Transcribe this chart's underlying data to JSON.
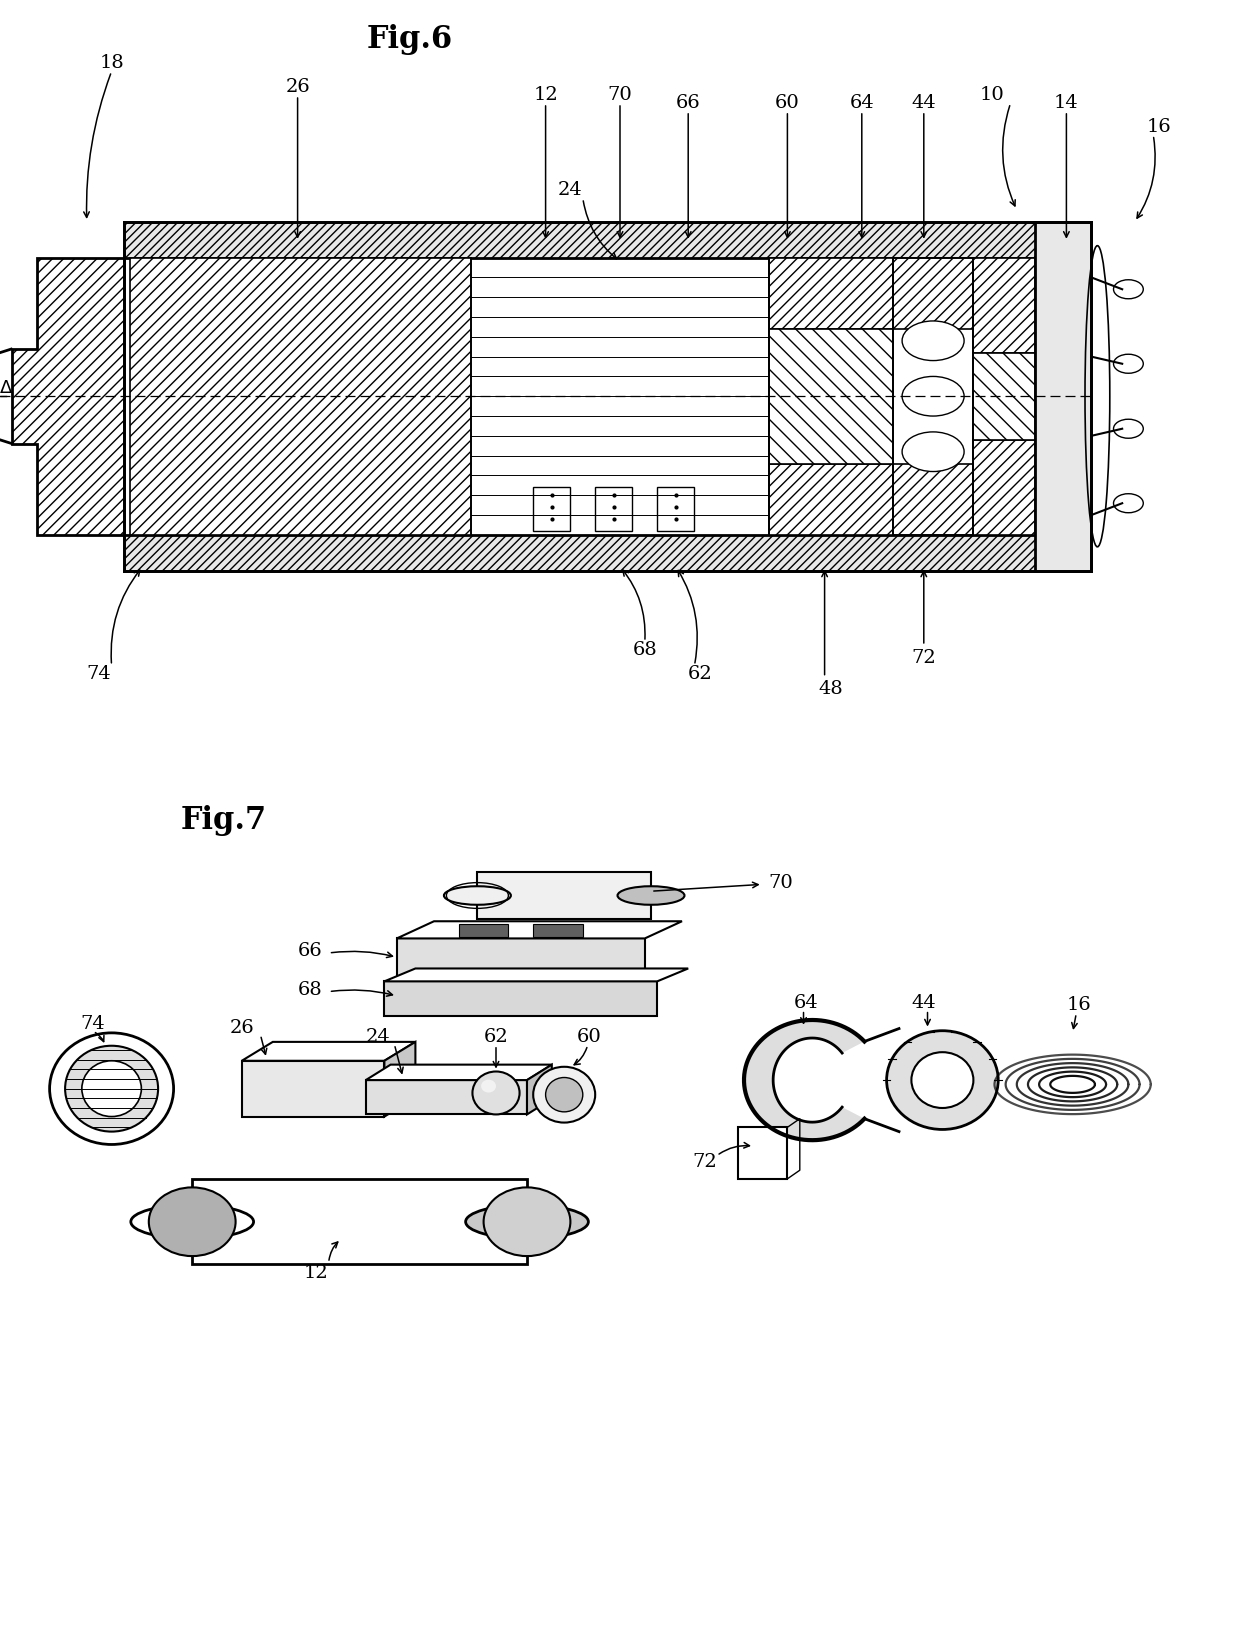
{
  "fig6_title": "Fig.6",
  "fig7_title": "Fig.7",
  "background": "#ffffff",
  "lc": "#000000",
  "title_fs": 20,
  "label_fs": 14
}
